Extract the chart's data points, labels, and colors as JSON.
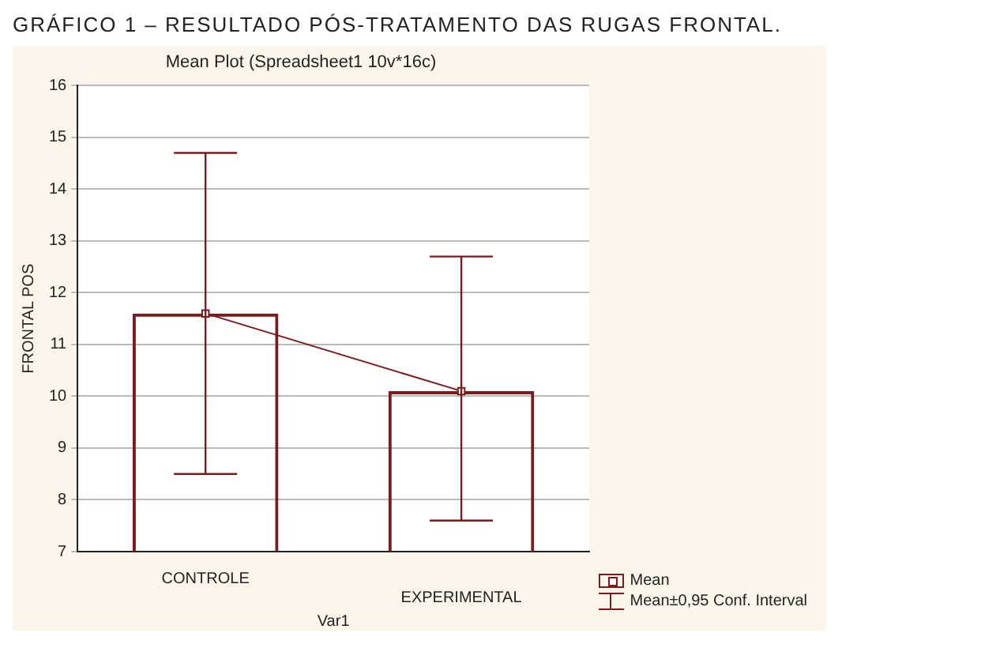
{
  "chart_data": {
    "type": "bar",
    "title": "GRÁFICO 1 – RESULTADO PÓS-TRATAMENTO DAS RUGAS FRONTAL.",
    "subtitle": "Mean Plot (Spreadsheet1 10v*16c)",
    "xlabel": "Var1",
    "ylabel": "FRONTAL POS",
    "categories": [
      "CONTROLE",
      "EXPERIMENTAL"
    ],
    "series": [
      {
        "name": "Mean",
        "color": "#7b1c1c",
        "values": [
          11.6,
          10.1
        ],
        "errors": [
          [
            8.5,
            14.7
          ],
          [
            7.6,
            12.7
          ]
        ]
      },
      {
        "type": "line",
        "color": "#7b1c1c",
        "values": [
          11.6,
          10.1
        ],
        "marker": "square"
      }
    ],
    "annotations": [
      "Mean±0,95 Conf. Interval"
    ],
    "ylim": [
      7,
      16
    ],
    "yticks": [
      7,
      8,
      9,
      10,
      11,
      12,
      13,
      14,
      15,
      16
    ],
    "grid": "y",
    "legend": "bottom right"
  }
}
